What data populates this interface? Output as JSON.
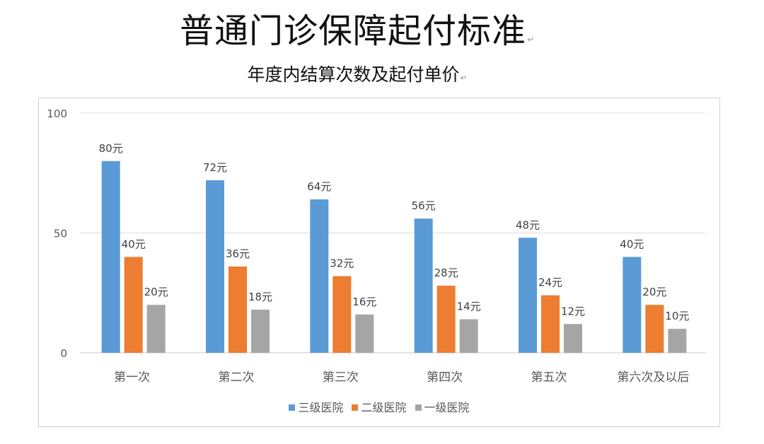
{
  "title": "普通门诊保障起付标准",
  "subtitle": "年度内结算次数及起付单价",
  "chart_data": {
    "type": "bar",
    "categories": [
      "第一次",
      "第二次",
      "第三次",
      "第四次",
      "第五次",
      "第六次及以后"
    ],
    "series": [
      {
        "name": "三级医院",
        "values": [
          80,
          72,
          64,
          56,
          48,
          40
        ],
        "labels": [
          "80元",
          "72元",
          "64元",
          "56元",
          "48元",
          "40元"
        ],
        "color": "#5b9bd5"
      },
      {
        "name": "二级医院",
        "values": [
          40,
          36,
          32,
          28,
          24,
          20
        ],
        "labels": [
          "40元",
          "36元",
          "32元",
          "28元",
          "24元",
          "20元"
        ],
        "color": "#ed7d31"
      },
      {
        "name": "一级医院",
        "values": [
          20,
          18,
          16,
          14,
          12,
          10
        ],
        "labels": [
          "20元",
          "18元",
          "16元",
          "14元",
          "12元",
          "10元"
        ],
        "color": "#a5a5a5"
      }
    ],
    "ylim": [
      0,
      100
    ],
    "yticks": [
      0,
      50,
      100
    ],
    "ytick_labels": [
      "0",
      "50",
      "100"
    ],
    "grid": true,
    "legend_position": "bottom"
  }
}
